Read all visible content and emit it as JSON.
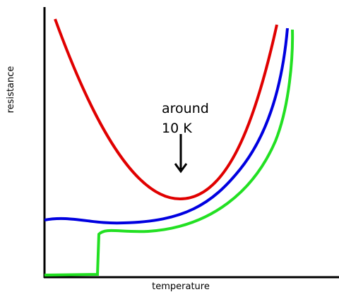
{
  "axes": {
    "y_label": "resistance",
    "x_label": "temperature"
  },
  "annotation": {
    "lines": [
      "around",
      "10 K"
    ]
  }
}
